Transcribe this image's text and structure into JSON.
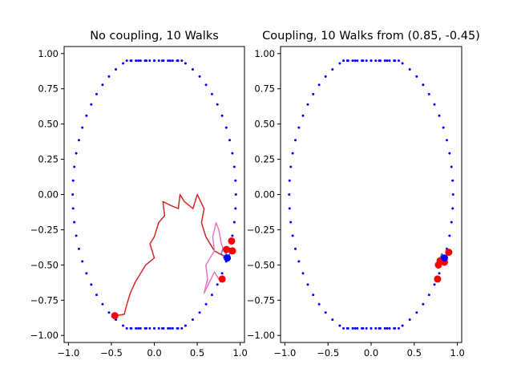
{
  "chart_data": [
    {
      "type": "line",
      "title": "No coupling, 10 Walks",
      "xlim": [
        -1.05,
        1.05
      ],
      "ylim": [
        -1.05,
        1.05
      ],
      "xticks": [
        -1.0,
        -0.5,
        0.0,
        0.5,
        1.0
      ],
      "xtick_labels": [
        "−1.0",
        "−0.5",
        "0.0",
        "0.5",
        "1.0"
      ],
      "yticks": [
        1.0,
        0.75,
        0.5,
        0.25,
        0.0,
        -0.25,
        -0.5,
        -0.75,
        -1.0
      ],
      "ytick_labels": [
        "1.00",
        "0.75",
        "0.50",
        "0.25",
        "0.00",
        "−0.25",
        "−0.50",
        "−0.75",
        "−1.00"
      ],
      "grid": false,
      "boundary": {
        "shape": "rounded-rectangle dotted outline",
        "x_range": [
          -0.95,
          0.95
        ],
        "y_range": [
          -0.95,
          0.95
        ],
        "color": "#0000ff"
      },
      "start_point": {
        "x": 0.85,
        "y": -0.45,
        "color": "#0000ff"
      },
      "series": [
        {
          "color": "#d62728",
          "values": [
            [
              0.85,
              -0.45
            ],
            [
              0.7,
              -0.4
            ],
            [
              0.6,
              -0.3
            ],
            [
              0.55,
              -0.2
            ],
            [
              0.58,
              -0.1
            ],
            [
              0.5,
              0.0
            ],
            [
              0.45,
              -0.1
            ],
            [
              0.35,
              -0.05
            ],
            [
              0.3,
              0.0
            ],
            [
              0.28,
              -0.1
            ],
            [
              0.2,
              -0.08
            ],
            [
              0.1,
              -0.05
            ],
            [
              0.12,
              -0.15
            ],
            [
              0.05,
              -0.2
            ],
            [
              0.0,
              -0.3
            ],
            [
              -0.05,
              -0.35
            ],
            [
              0.0,
              -0.45
            ],
            [
              -0.1,
              -0.5
            ],
            [
              -0.15,
              -0.55
            ],
            [
              -0.22,
              -0.62
            ],
            [
              -0.28,
              -0.7
            ],
            [
              -0.32,
              -0.78
            ],
            [
              -0.35,
              -0.85
            ],
            [
              -0.45,
              -0.86
            ]
          ],
          "end": {
            "x": -0.46,
            "y": -0.86
          }
        },
        {
          "color": "#e377c2",
          "values": [
            [
              0.85,
              -0.45
            ],
            [
              0.78,
              -0.35
            ],
            [
              0.75,
              -0.25
            ],
            [
              0.72,
              -0.2
            ],
            [
              0.68,
              -0.3
            ],
            [
              0.7,
              -0.4
            ],
            [
              0.65,
              -0.45
            ],
            [
              0.6,
              -0.5
            ],
            [
              0.62,
              -0.6
            ],
            [
              0.58,
              -0.7
            ],
            [
              0.62,
              -0.65
            ],
            [
              0.7,
              -0.55
            ],
            [
              0.75,
              -0.6
            ]
          ],
          "end": {
            "x": 0.79,
            "y": -0.6
          }
        },
        {
          "color": "#9467bd",
          "values": [
            [
              0.85,
              -0.45
            ],
            [
              0.83,
              -0.4
            ],
            [
              0.8,
              -0.38
            ],
            [
              0.78,
              -0.42
            ],
            [
              0.82,
              -0.44
            ]
          ],
          "end": {
            "x": 0.9,
            "y": -0.33
          }
        },
        {
          "color": "#1f77b4",
          "values": [
            [
              0.85,
              -0.45
            ],
            [
              0.88,
              -0.42
            ],
            [
              0.87,
              -0.38
            ],
            [
              0.9,
              -0.4
            ]
          ],
          "end": {
            "x": 0.91,
            "y": -0.4
          }
        },
        {
          "color": "#7f7f7f",
          "values": [
            [
              0.85,
              -0.45
            ],
            [
              0.82,
              -0.43
            ],
            [
              0.8,
              -0.45
            ]
          ],
          "end": {
            "x": 0.84,
            "y": -0.39
          }
        }
      ]
    },
    {
      "type": "line",
      "title": "Coupling, 10 Walks from (0.85, -0.45)",
      "xlim": [
        -1.05,
        1.05
      ],
      "ylim": [
        -1.05,
        1.05
      ],
      "xticks": [
        -1.0,
        -0.5,
        0.0,
        0.5,
        1.0
      ],
      "xtick_labels": [
        "−1.0",
        "−0.5",
        "0.0",
        "0.5",
        "1.0"
      ],
      "yticks": [
        1.0,
        0.75,
        0.5,
        0.25,
        0.0,
        -0.25,
        -0.5,
        -0.75,
        -1.0
      ],
      "ytick_labels": [
        "1.00",
        "0.75",
        "0.50",
        "0.25",
        "0.00",
        "−0.25",
        "−0.50",
        "−0.75",
        "−1.00"
      ],
      "grid": false,
      "boundary": {
        "shape": "rounded-rectangle dotted outline",
        "x_range": [
          -0.95,
          0.95
        ],
        "y_range": [
          -0.95,
          0.95
        ],
        "color": "#0000ff"
      },
      "start_point": {
        "x": 0.85,
        "y": -0.45,
        "color": "#0000ff"
      },
      "series": [
        {
          "color": "#1f77b4",
          "values": [
            [
              0.85,
              -0.45
            ],
            [
              0.82,
              -0.42
            ],
            [
              0.8,
              -0.45
            ],
            [
              0.78,
              -0.48
            ]
          ],
          "end": {
            "x": 0.78,
            "y": -0.5
          }
        },
        {
          "color": "#7f7f7f",
          "values": [
            [
              0.85,
              -0.45
            ],
            [
              0.83,
              -0.48
            ]
          ],
          "end": {
            "x": 0.8,
            "y": -0.47
          }
        },
        {
          "color": "#9467bd",
          "values": [
            [
              0.85,
              -0.45
            ],
            [
              0.86,
              -0.44
            ]
          ],
          "end": {
            "x": 0.9,
            "y": -0.41
          }
        },
        {
          "color": "#d62728",
          "values": [
            [
              0.85,
              -0.45
            ],
            [
              0.8,
              -0.5
            ]
          ],
          "end": {
            "x": 0.77,
            "y": -0.6
          }
        },
        {
          "color": "#e377c2",
          "values": [
            [
              0.85,
              -0.45
            ],
            [
              0.84,
              -0.46
            ]
          ],
          "end": {
            "x": 0.85,
            "y": -0.48
          }
        }
      ]
    }
  ]
}
